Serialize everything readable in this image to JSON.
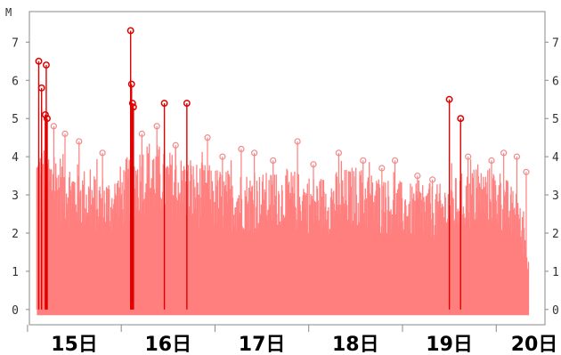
{
  "chart_data": {
    "type": "bar",
    "title": "",
    "xlabel": "",
    "ylabel": "",
    "y_unit_label": "M",
    "ylim": [
      -0.4,
      7.8
    ],
    "y_ticks": [
      0,
      1,
      2,
      3,
      4,
      5,
      6,
      7
    ],
    "y_tick_labels": [
      "0",
      "1",
      "2",
      "3",
      "4",
      "5",
      "6",
      "7"
    ],
    "x_range_days": [
      14.52,
      20.02
    ],
    "x_tick_days": [
      15,
      16,
      17,
      18,
      19,
      20
    ],
    "x_tick_labels": [
      "15日",
      "16日",
      "17日",
      "18日",
      "19日",
      "20日"
    ],
    "grid": false,
    "legend": "none",
    "colors": {
      "fill": "#ff7f7f",
      "highlight": "#e00000",
      "axis": "#888888"
    },
    "highlighted_events": [
      {
        "day": 14.62,
        "value": 6.5
      },
      {
        "day": 14.65,
        "value": 5.8
      },
      {
        "day": 14.69,
        "value": 5.1
      },
      {
        "day": 14.7,
        "value": 6.4
      },
      {
        "day": 14.71,
        "value": 5.0
      },
      {
        "day": 15.6,
        "value": 7.3
      },
      {
        "day": 15.61,
        "value": 5.9
      },
      {
        "day": 15.62,
        "value": 5.4
      },
      {
        "day": 15.63,
        "value": 5.3
      },
      {
        "day": 15.96,
        "value": 5.4
      },
      {
        "day": 16.2,
        "value": 5.4
      },
      {
        "day": 19.0,
        "value": 5.5
      },
      {
        "day": 19.12,
        "value": 5.0
      }
    ],
    "envelope": [
      {
        "day": 14.6,
        "value": 4.4
      },
      {
        "day": 14.8,
        "value": 4.2
      },
      {
        "day": 15.0,
        "value": 3.9
      },
      {
        "day": 15.2,
        "value": 3.6
      },
      {
        "day": 15.4,
        "value": 3.5
      },
      {
        "day": 15.65,
        "value": 4.3
      },
      {
        "day": 15.8,
        "value": 4.5
      },
      {
        "day": 16.0,
        "value": 4.2
      },
      {
        "day": 16.3,
        "value": 3.9
      },
      {
        "day": 16.6,
        "value": 3.7
      },
      {
        "day": 17.0,
        "value": 3.6
      },
      {
        "day": 17.3,
        "value": 3.7
      },
      {
        "day": 17.6,
        "value": 3.5
      },
      {
        "day": 18.0,
        "value": 3.8
      },
      {
        "day": 18.3,
        "value": 3.5
      },
      {
        "day": 18.6,
        "value": 3.3
      },
      {
        "day": 18.9,
        "value": 3.3
      },
      {
        "day": 19.3,
        "value": 3.8
      },
      {
        "day": 19.55,
        "value": 3.7
      },
      {
        "day": 19.7,
        "value": 3.1
      },
      {
        "day": 19.8,
        "value": 2.4
      },
      {
        "day": 19.85,
        "value": 1.2
      }
    ],
    "minor_peaks": [
      {
        "day": 14.78,
        "value": 4.8
      },
      {
        "day": 14.9,
        "value": 4.6
      },
      {
        "day": 15.05,
        "value": 4.4
      },
      {
        "day": 15.3,
        "value": 4.1
      },
      {
        "day": 15.72,
        "value": 4.6
      },
      {
        "day": 15.88,
        "value": 4.8
      },
      {
        "day": 16.08,
        "value": 4.3
      },
      {
        "day": 16.42,
        "value": 4.5
      },
      {
        "day": 16.58,
        "value": 4.0
      },
      {
        "day": 16.78,
        "value": 4.2
      },
      {
        "day": 16.92,
        "value": 4.1
      },
      {
        "day": 17.12,
        "value": 3.9
      },
      {
        "day": 17.38,
        "value": 4.4
      },
      {
        "day": 17.55,
        "value": 3.8
      },
      {
        "day": 17.82,
        "value": 4.1
      },
      {
        "day": 18.08,
        "value": 3.9
      },
      {
        "day": 18.28,
        "value": 3.7
      },
      {
        "day": 18.42,
        "value": 3.9
      },
      {
        "day": 18.66,
        "value": 3.5
      },
      {
        "day": 18.82,
        "value": 3.4
      },
      {
        "day": 19.2,
        "value": 4.0
      },
      {
        "day": 19.45,
        "value": 3.9
      },
      {
        "day": 19.58,
        "value": 4.1
      },
      {
        "day": 19.72,
        "value": 4.0
      },
      {
        "day": 19.82,
        "value": 3.6
      }
    ]
  }
}
